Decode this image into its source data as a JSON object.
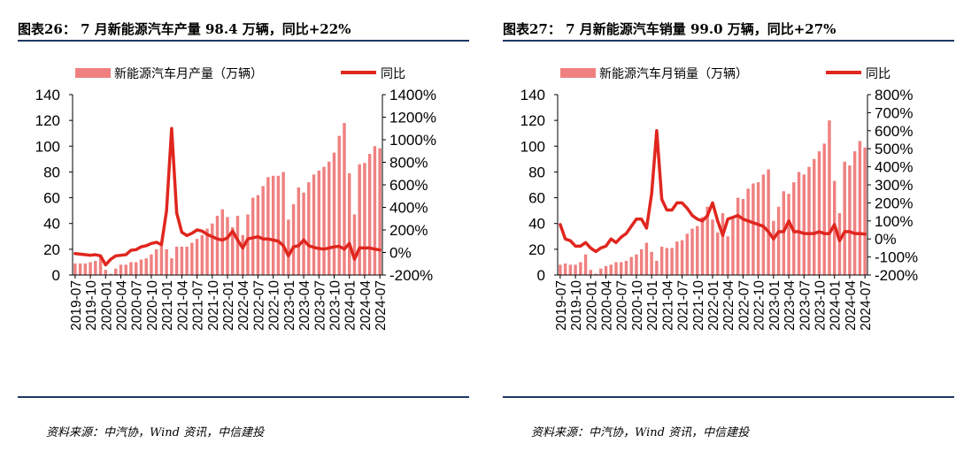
{
  "panels": [
    {
      "title": "图表26： 7 月新能源汽车产量 98.4 万辆，同比+22%",
      "source": "资料来源：中汽协，Wind 资讯，中信建投"
    },
    {
      "title": "图表27： 7 月新能源汽车销量 99.0 万辆，同比+27%",
      "source": "资料来源：中汽协，Wind 资讯，中信建投"
    }
  ],
  "colors": {
    "bar": "#f08080",
    "line": "#e0261e",
    "rule": "#1f3864"
  },
  "chart_data": [
    {
      "type": "bar",
      "title": "",
      "legend": "top",
      "categories": [
        "2019-07",
        "2019-08",
        "2019-09",
        "2019-10",
        "2019-11",
        "2019-12",
        "2020-01",
        "2020-02",
        "2020-03",
        "2020-04",
        "2020-05",
        "2020-06",
        "2020-07",
        "2020-08",
        "2020-09",
        "2020-10",
        "2020-11",
        "2020-12",
        "2021-01",
        "2021-02",
        "2021-03",
        "2021-04",
        "2021-05",
        "2021-06",
        "2021-07",
        "2021-08",
        "2021-09",
        "2021-10",
        "2021-11",
        "2021-12",
        "2022-01",
        "2022-02",
        "2022-03",
        "2022-04",
        "2022-05",
        "2022-06",
        "2022-07",
        "2022-08",
        "2022-09",
        "2022-10",
        "2022-11",
        "2022-12",
        "2023-01",
        "2023-02",
        "2023-03",
        "2023-04",
        "2023-05",
        "2023-06",
        "2023-07",
        "2023-08",
        "2023-09",
        "2023-10",
        "2023-11",
        "2023-12",
        "2024-01",
        "2024-02",
        "2024-03",
        "2024-04",
        "2024-05",
        "2024-06",
        "2024-07"
      ],
      "tick_labels": [
        "2019-07",
        "2019-10",
        "2020-01",
        "2020-04",
        "2020-07",
        "2020-10",
        "2021-01",
        "2021-04",
        "2021-07",
        "2021-10",
        "2022-01",
        "2022-04",
        "2022-07",
        "2022-10",
        "2023-01",
        "2023-04",
        "2023-07",
        "2023-10",
        "2024-01",
        "2024-04",
        "2024-07"
      ],
      "series": [
        {
          "name": "新能源汽车月产量（万辆）",
          "type": "bar",
          "axis": "left",
          "values": [
            9,
            9,
            9,
            10,
            11,
            15,
            4,
            1,
            5,
            8,
            8,
            10,
            10,
            12,
            13,
            16,
            20,
            23,
            20,
            13,
            22,
            22,
            22,
            25,
            28,
            31,
            36,
            40,
            46,
            51,
            45,
            37,
            46,
            31,
            47,
            60,
            62,
            69,
            76,
            77,
            77,
            80,
            43,
            55,
            68,
            64,
            72,
            78,
            81,
            84,
            88,
            95,
            108,
            118,
            79,
            47,
            86,
            87,
            94,
            100,
            98.4
          ]
        },
        {
          "name": "同比",
          "type": "line",
          "axis": "right",
          "values": [
            -10,
            -15,
            -20,
            -25,
            -20,
            -30,
            -110,
            -60,
            -30,
            -25,
            -20,
            20,
            25,
            50,
            60,
            80,
            90,
            70,
            370,
            1100,
            350,
            180,
            150,
            170,
            200,
            190,
            160,
            140,
            120,
            110,
            130,
            190,
            110,
            40,
            120,
            130,
            140,
            120,
            120,
            110,
            100,
            60,
            -30,
            50,
            60,
            110,
            60,
            45,
            35,
            30,
            40,
            50,
            55,
            30,
            80,
            -60,
            40,
            40,
            40,
            30,
            22
          ]
        }
      ],
      "y_left": {
        "min": 0,
        "max": 140,
        "ticks": [
          "0",
          "20",
          "40",
          "60",
          "80",
          "100",
          "120",
          "140"
        ]
      },
      "y_right": {
        "min": -200,
        "max": 1400,
        "ticks": [
          "-200%",
          "0%",
          "200%",
          "400%",
          "600%",
          "800%",
          "1000%",
          "1200%",
          "1400%"
        ]
      }
    },
    {
      "type": "bar",
      "title": "",
      "legend": "top",
      "categories": [
        "2019-07",
        "2019-08",
        "2019-09",
        "2019-10",
        "2019-11",
        "2019-12",
        "2020-01",
        "2020-02",
        "2020-03",
        "2020-04",
        "2020-05",
        "2020-06",
        "2020-07",
        "2020-08",
        "2020-09",
        "2020-10",
        "2020-11",
        "2020-12",
        "2021-01",
        "2021-02",
        "2021-03",
        "2021-04",
        "2021-05",
        "2021-06",
        "2021-07",
        "2021-08",
        "2021-09",
        "2021-10",
        "2021-11",
        "2021-12",
        "2022-01",
        "2022-02",
        "2022-03",
        "2022-04",
        "2022-05",
        "2022-06",
        "2022-07",
        "2022-08",
        "2022-09",
        "2022-10",
        "2022-11",
        "2022-12",
        "2023-01",
        "2023-02",
        "2023-03",
        "2023-04",
        "2023-05",
        "2023-06",
        "2023-07",
        "2023-08",
        "2023-09",
        "2023-10",
        "2023-11",
        "2023-12",
        "2024-01",
        "2024-02",
        "2024-03",
        "2024-04",
        "2024-05",
        "2024-06",
        "2024-07"
      ],
      "tick_labels": [
        "2019-07",
        "2019-10",
        "2020-01",
        "2020-04",
        "2020-07",
        "2020-10",
        "2021-01",
        "2021-04",
        "2021-07",
        "2021-10",
        "2022-01",
        "2022-04",
        "2022-07",
        "2022-10",
        "2023-01",
        "2023-04",
        "2023-07",
        "2023-10",
        "2024-01",
        "2024-04",
        "2024-07"
      ],
      "series": [
        {
          "name": "新能源汽车月销量（万辆）",
          "type": "bar",
          "axis": "left",
          "values": [
            8,
            9,
            8,
            8,
            10,
            16,
            4,
            1,
            5,
            7,
            8,
            10,
            10,
            11,
            14,
            16,
            20,
            25,
            18,
            11,
            22,
            21,
            21,
            26,
            27,
            32,
            36,
            38,
            45,
            53,
            43,
            33,
            48,
            30,
            45,
            60,
            59,
            67,
            71,
            72,
            78,
            82,
            42,
            53,
            65,
            63,
            72,
            80,
            78,
            84,
            90,
            96,
            102,
            120,
            73,
            48,
            88,
            85,
            96,
            104,
            99
          ]
        },
        {
          "name": "同比",
          "type": "line",
          "axis": "right",
          "values": [
            80,
            0,
            -10,
            -40,
            -40,
            -20,
            -50,
            -70,
            -50,
            -40,
            0,
            -20,
            10,
            30,
            70,
            110,
            110,
            60,
            250,
            600,
            220,
            160,
            160,
            200,
            200,
            170,
            130,
            110,
            100,
            130,
            200,
            100,
            20,
            110,
            120,
            130,
            110,
            100,
            90,
            80,
            70,
            40,
            0,
            40,
            40,
            100,
            40,
            40,
            30,
            30,
            30,
            40,
            30,
            30,
            80,
            -10,
            40,
            40,
            30,
            30,
            27
          ]
        }
      ],
      "y_left": {
        "min": 0,
        "max": 140,
        "ticks": [
          "0",
          "20",
          "40",
          "60",
          "80",
          "100",
          "120",
          "140"
        ]
      },
      "y_right": {
        "min": -200,
        "max": 800,
        "ticks": [
          "-200%",
          "-100%",
          "0%",
          "100%",
          "200%",
          "300%",
          "400%",
          "500%",
          "600%",
          "700%",
          "800%"
        ]
      }
    }
  ]
}
